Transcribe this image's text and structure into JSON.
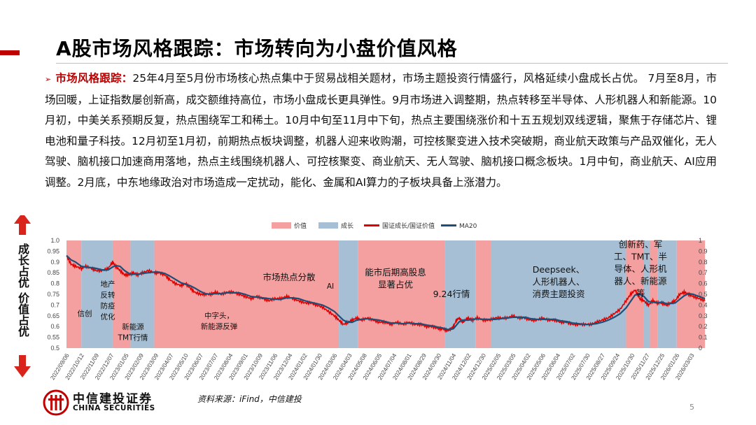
{
  "title": "A股市场风格跟踪：市场转向为小盘价值风格",
  "paragraph": {
    "bullet": "➢",
    "lead": "市场风格跟踪：",
    "body": "25年4月至5月份市场核心热点集中于贸易战相关题材，市场主题投资行情盛行，风格延续小盘成长占优。 7月至8月，市场回暖，上证指数屡创新高，成交额维持高位，市场小盘成长更具弹性。9月市场进入调整期，热点转移至半导体、人形机器人和新能源。10月初，中美关系预期反复，热点围绕军工和稀土。10月中旬至11月中下旬，热点主要围绕涨价和十五五规划双线逻辑，聚焦于存储芯片、锂电池和量子科技。12月初至1月初，前期热点板块调整，机器人迎来收购潮，可控核聚变进入技术突破期，商业航天政策与产品双催化，无人驾驶、脑机接口加速商用落地，热点主线围绕机器人、可控核聚变、商业航天、无人驾驶、脑机接口概念板块。1月中旬，商业航天、AI应用调整。2月底，中东地缘政治对市场造成一定扰动，能化、金属和AI算力的子板块具备上涨潜力。"
  },
  "side_label": {
    "top": "成长占优",
    "bottom": "价值占优"
  },
  "chart_data": {
    "type": "line",
    "legend": [
      "价值",
      "成长",
      "国证成长/国证价值",
      "MA20"
    ],
    "colors": {
      "value": "#f4a0a0",
      "growth": "#a6bfd4",
      "ratio": "#e00000",
      "ma": "#1f4e79"
    },
    "y_left": {
      "ylim": [
        0.5,
        1.0
      ],
      "ticks": [
        "0.5",
        "0.55",
        "0.6",
        "0.65",
        "0.7",
        "0.75",
        "0.8",
        "0.85",
        "0.9",
        "0.95",
        "1.0"
      ]
    },
    "y_right": {
      "ylim": [
        0,
        1
      ],
      "ticks": [
        "0",
        "0.1",
        "0.2",
        "0.3",
        "0.4",
        "0.5",
        "0.6",
        "0.7",
        "0.8",
        "0.9",
        "1"
      ]
    },
    "x_ticks": [
      "2022/09/06",
      "2022/10/12",
      "2022/11/09",
      "2022/12/07",
      "2023/01/05",
      "2023/02/09",
      "2023/03/09",
      "2023/04/07",
      "2023/05/10",
      "2023/06/07",
      "2023/07/07",
      "2023/08/04",
      "2023/09/01",
      "2023/10/09",
      "2023/11/06",
      "2023/12/04",
      "2024/01/02",
      "2024/01/30",
      "2024/03/06",
      "2024/04/03",
      "2024/05/08",
      "2024/06/05",
      "2024/07/04",
      "2024/08/01",
      "2024/08/29",
      "2024/09/30",
      "2024/11/04",
      "2024/12/02",
      "2024/12/30",
      "2025/02/05",
      "2025/03/05",
      "2025/04/02",
      "2025/05/06",
      "2025/06/04",
      "2025/07/02",
      "2025/07/30",
      "2025/08/27",
      "2025/09/24",
      "2025/10/30",
      "2025/11/27",
      "2025/12/25",
      "2026/01/26",
      "2026/03/03"
    ],
    "regimes": [
      {
        "start": 0,
        "end": 1.0,
        "style": "value"
      },
      {
        "start": 1.0,
        "end": 3.1,
        "style": "growth"
      },
      {
        "start": 3.1,
        "end": 4.3,
        "style": "value"
      },
      {
        "start": 4.3,
        "end": 5.9,
        "style": "growth"
      },
      {
        "start": 5.9,
        "end": 18.3,
        "style": "value"
      },
      {
        "start": 18.3,
        "end": 19.6,
        "style": "growth"
      },
      {
        "start": 19.6,
        "end": 25.4,
        "style": "value"
      },
      {
        "start": 25.4,
        "end": 27.5,
        "style": "growth"
      },
      {
        "start": 27.5,
        "end": 28.5,
        "style": "value"
      },
      {
        "start": 28.5,
        "end": 37.6,
        "style": "growth"
      },
      {
        "start": 37.6,
        "end": 38.8,
        "style": "value"
      },
      {
        "start": 38.8,
        "end": 39.2,
        "style": "growth"
      },
      {
        "start": 39.2,
        "end": 39.7,
        "style": "value"
      },
      {
        "start": 39.7,
        "end": 41.0,
        "style": "growth"
      },
      {
        "start": 41.0,
        "end": 42.9,
        "style": "value"
      }
    ],
    "ratio": [
      [
        0,
        0.93
      ],
      [
        0.3,
        0.89
      ],
      [
        0.6,
        0.88
      ],
      [
        1.0,
        0.87
      ],
      [
        1.3,
        0.88
      ],
      [
        1.7,
        0.87
      ],
      [
        2.0,
        0.86
      ],
      [
        2.4,
        0.86
      ],
      [
        2.8,
        0.87
      ],
      [
        3.1,
        0.9
      ],
      [
        3.3,
        0.88
      ],
      [
        3.6,
        0.86
      ],
      [
        3.9,
        0.84
      ],
      [
        4.2,
        0.84
      ],
      [
        4.5,
        0.85
      ],
      [
        4.8,
        0.84
      ],
      [
        5.1,
        0.85
      ],
      [
        5.5,
        0.86
      ],
      [
        5.9,
        0.85
      ],
      [
        6.2,
        0.85
      ],
      [
        6.6,
        0.84
      ],
      [
        6.9,
        0.82
      ],
      [
        7.3,
        0.8
      ],
      [
        7.7,
        0.79
      ],
      [
        8.0,
        0.8
      ],
      [
        8.3,
        0.78
      ],
      [
        8.6,
        0.76
      ],
      [
        9.0,
        0.75
      ],
      [
        9.3,
        0.75
      ],
      [
        9.7,
        0.75
      ],
      [
        10.0,
        0.76
      ],
      [
        10.4,
        0.75
      ],
      [
        10.8,
        0.76
      ],
      [
        11.2,
        0.76
      ],
      [
        11.6,
        0.75
      ],
      [
        12.0,
        0.74
      ],
      [
        12.4,
        0.73
      ],
      [
        12.8,
        0.74
      ],
      [
        13.2,
        0.73
      ],
      [
        13.6,
        0.72
      ],
      [
        14.0,
        0.73
      ],
      [
        14.4,
        0.73
      ],
      [
        14.8,
        0.74
      ],
      [
        15.2,
        0.73
      ],
      [
        15.6,
        0.72
      ],
      [
        16.0,
        0.71
      ],
      [
        16.4,
        0.71
      ],
      [
        16.8,
        0.7
      ],
      [
        17.2,
        0.69
      ],
      [
        17.6,
        0.67
      ],
      [
        18.0,
        0.65
      ],
      [
        18.3,
        0.63
      ],
      [
        18.6,
        0.61
      ],
      [
        18.9,
        0.62
      ],
      [
        19.2,
        0.63
      ],
      [
        19.5,
        0.64
      ],
      [
        19.8,
        0.63
      ],
      [
        20.2,
        0.64
      ],
      [
        20.6,
        0.63
      ],
      [
        21.0,
        0.62
      ],
      [
        21.4,
        0.62
      ],
      [
        21.8,
        0.61
      ],
      [
        22.2,
        0.62
      ],
      [
        22.6,
        0.61
      ],
      [
        23.0,
        0.62
      ],
      [
        23.4,
        0.61
      ],
      [
        23.8,
        0.61
      ],
      [
        24.2,
        0.6
      ],
      [
        24.6,
        0.6
      ],
      [
        25.0,
        0.59
      ],
      [
        25.3,
        0.59
      ],
      [
        25.6,
        0.58
      ],
      [
        25.8,
        0.59
      ],
      [
        26.0,
        0.6
      ],
      [
        26.2,
        0.63
      ],
      [
        26.4,
        0.64
      ],
      [
        26.6,
        0.62
      ],
      [
        26.8,
        0.63
      ],
      [
        27.0,
        0.64
      ],
      [
        27.3,
        0.63
      ],
      [
        27.6,
        0.64
      ],
      [
        28.0,
        0.63
      ],
      [
        28.4,
        0.63
      ],
      [
        28.8,
        0.64
      ],
      [
        29.2,
        0.64
      ],
      [
        29.6,
        0.64
      ],
      [
        30.0,
        0.65
      ],
      [
        30.4,
        0.64
      ],
      [
        30.8,
        0.64
      ],
      [
        31.2,
        0.63
      ],
      [
        31.6,
        0.63
      ],
      [
        32.0,
        0.64
      ],
      [
        32.4,
        0.63
      ],
      [
        32.8,
        0.63
      ],
      [
        33.2,
        0.62
      ],
      [
        33.6,
        0.62
      ],
      [
        34.0,
        0.61
      ],
      [
        34.4,
        0.61
      ],
      [
        34.8,
        0.61
      ],
      [
        35.2,
        0.61
      ],
      [
        35.6,
        0.62
      ],
      [
        36.0,
        0.63
      ],
      [
        36.4,
        0.64
      ],
      [
        36.8,
        0.66
      ],
      [
        37.2,
        0.68
      ],
      [
        37.6,
        0.72
      ],
      [
        37.9,
        0.75
      ],
      [
        38.2,
        0.77
      ],
      [
        38.5,
        0.73
      ],
      [
        38.8,
        0.72
      ],
      [
        39.1,
        0.7
      ],
      [
        39.4,
        0.72
      ],
      [
        39.7,
        0.71
      ],
      [
        40.0,
        0.71
      ],
      [
        40.3,
        0.7
      ],
      [
        40.6,
        0.71
      ],
      [
        40.9,
        0.72
      ],
      [
        41.2,
        0.75
      ],
      [
        41.5,
        0.76
      ],
      [
        41.8,
        0.75
      ],
      [
        42.1,
        0.74
      ],
      [
        42.5,
        0.73
      ],
      [
        42.9,
        0.72
      ]
    ]
  },
  "annotations": [
    {
      "text": "信创"
    },
    {
      "text": "地产\n反转\n防疫\n优化"
    },
    {
      "text": "新能源\nTMT行情"
    },
    {
      "text": "中字头，\n新能源反弹"
    },
    {
      "text": "市场热点分散"
    },
    {
      "text": "AI"
    },
    {
      "text": "能市后期高股息\n显著占优"
    },
    {
      "text": "9.24行情"
    },
    {
      "text": "Deepseek、\n人形机器人、\n消费主题投资"
    },
    {
      "text": "创新药、军\n工、TMT、半\n导体、人形机\n器人、新能源\n等"
    }
  ],
  "footer": {
    "logo_cn": "中信建投证券",
    "logo_en": "CHINA SECURITIES",
    "source": "资料来源：iFind，中信建投",
    "page": "5"
  }
}
